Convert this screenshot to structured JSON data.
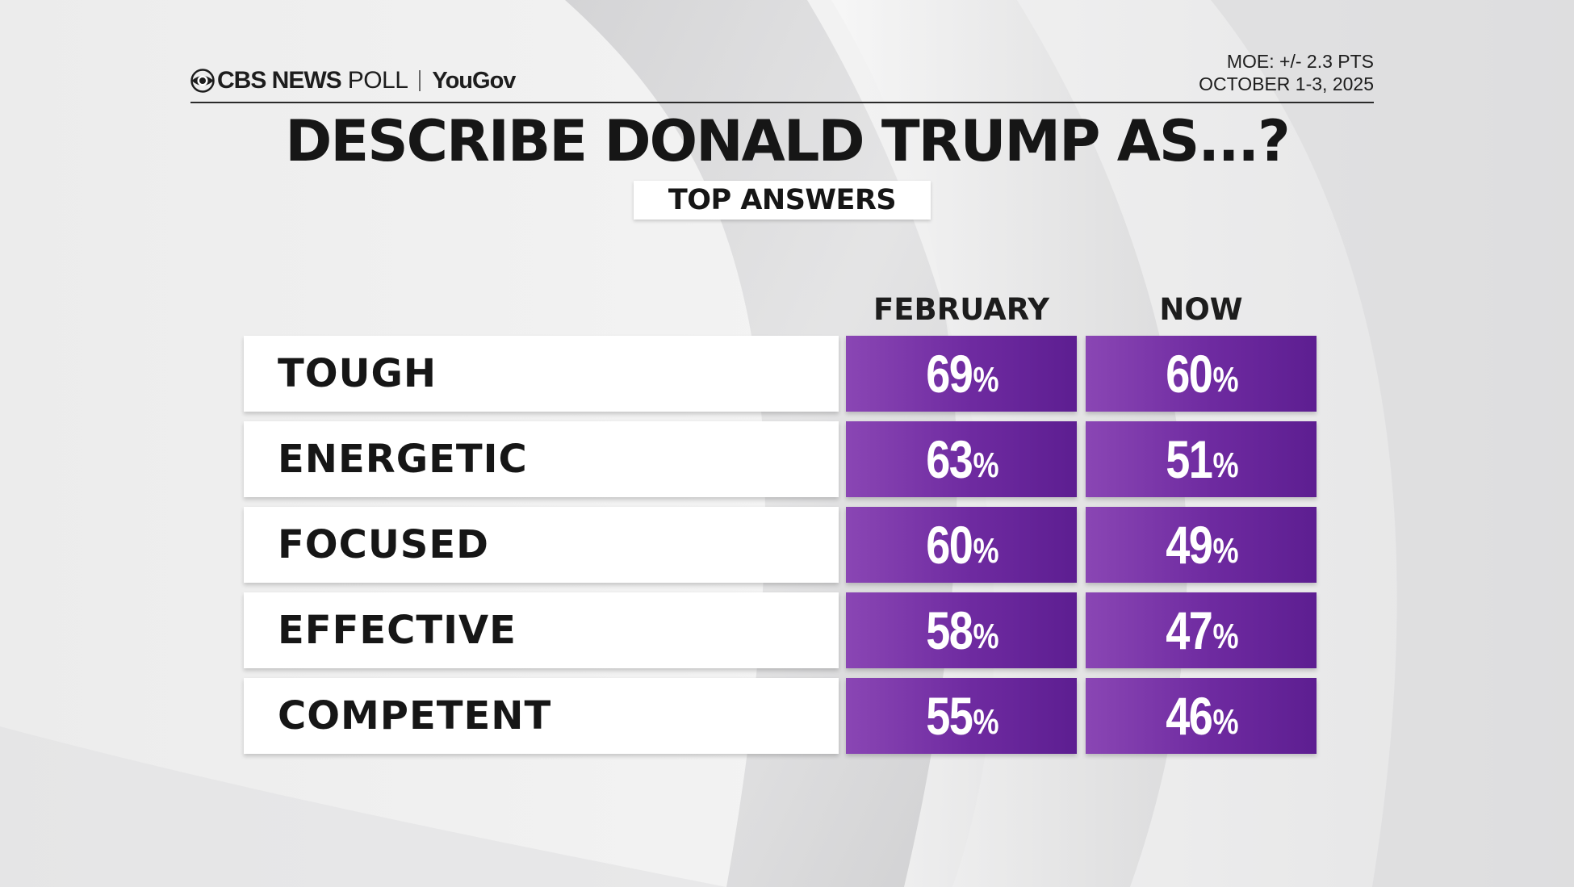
{
  "header": {
    "brand_cbs": "CBS NEWS",
    "brand_poll": "POLL",
    "brand_yougov": "YouGov",
    "moe": "MOE: +/- 2.3 PTS",
    "dates": "OCTOBER 1-3, 2025"
  },
  "title": "DESCRIBE DONALD TRUMP AS...?",
  "subtitle": "TOP ANSWERS",
  "colors": {
    "accent_purple": "#7a33a8",
    "text_dark": "#161616",
    "background": "#e9e9ea"
  },
  "chart_data": {
    "type": "table",
    "title": "DESCRIBE DONALD TRUMP AS...?",
    "subtitle": "TOP ANSWERS",
    "columns": [
      "FEBRUARY",
      "NOW"
    ],
    "unit": "%",
    "rows": [
      {
        "label": "TOUGH",
        "values": [
          69,
          60
        ]
      },
      {
        "label": "ENERGETIC",
        "values": [
          63,
          51
        ]
      },
      {
        "label": "FOCUSED",
        "values": [
          60,
          49
        ]
      },
      {
        "label": "EFFECTIVE",
        "values": [
          58,
          47
        ]
      },
      {
        "label": "COMPETENT",
        "values": [
          55,
          46
        ]
      }
    ]
  }
}
